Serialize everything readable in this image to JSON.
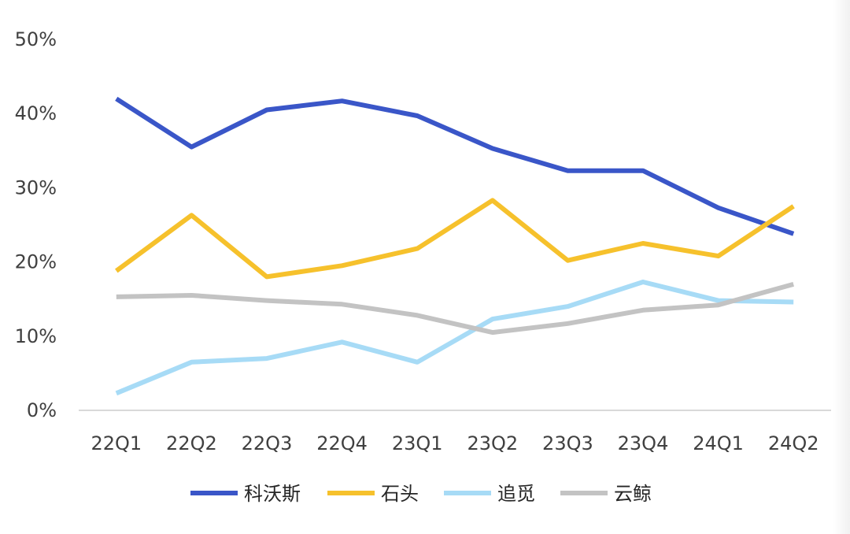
{
  "chart_data": {
    "type": "line",
    "categories": [
      "22Q1",
      "22Q2",
      "22Q3",
      "22Q4",
      "23Q1",
      "23Q2",
      "23Q3",
      "23Q4",
      "24Q1",
      "24Q2"
    ],
    "ylim": [
      0,
      50
    ],
    "yticks": [
      0,
      10,
      20,
      30,
      40,
      50
    ],
    "ytick_labels": [
      "0%",
      "10%",
      "20%",
      "30%",
      "40%",
      "50%"
    ],
    "legend_position": "bottom",
    "grid": false,
    "series": [
      {
        "name": "科沃斯",
        "color": "#3a56c8",
        "values": [
          42.0,
          35.5,
          40.5,
          41.7,
          39.7,
          35.3,
          32.3,
          32.3,
          27.3,
          23.8
        ]
      },
      {
        "name": "石头",
        "color": "#f6c12c",
        "values": [
          18.8,
          26.3,
          18.0,
          19.5,
          21.8,
          28.3,
          20.2,
          22.5,
          20.8,
          27.5
        ]
      },
      {
        "name": "追觅",
        "color": "#a7dbf6",
        "values": [
          2.3,
          6.5,
          7.0,
          9.2,
          6.5,
          12.3,
          14.0,
          17.3,
          14.8,
          14.6
        ]
      },
      {
        "name": "云鲸",
        "color": "#c3c3c3",
        "values": [
          15.3,
          15.5,
          14.8,
          14.3,
          12.8,
          10.5,
          11.7,
          13.5,
          14.2,
          17.0
        ]
      }
    ]
  }
}
